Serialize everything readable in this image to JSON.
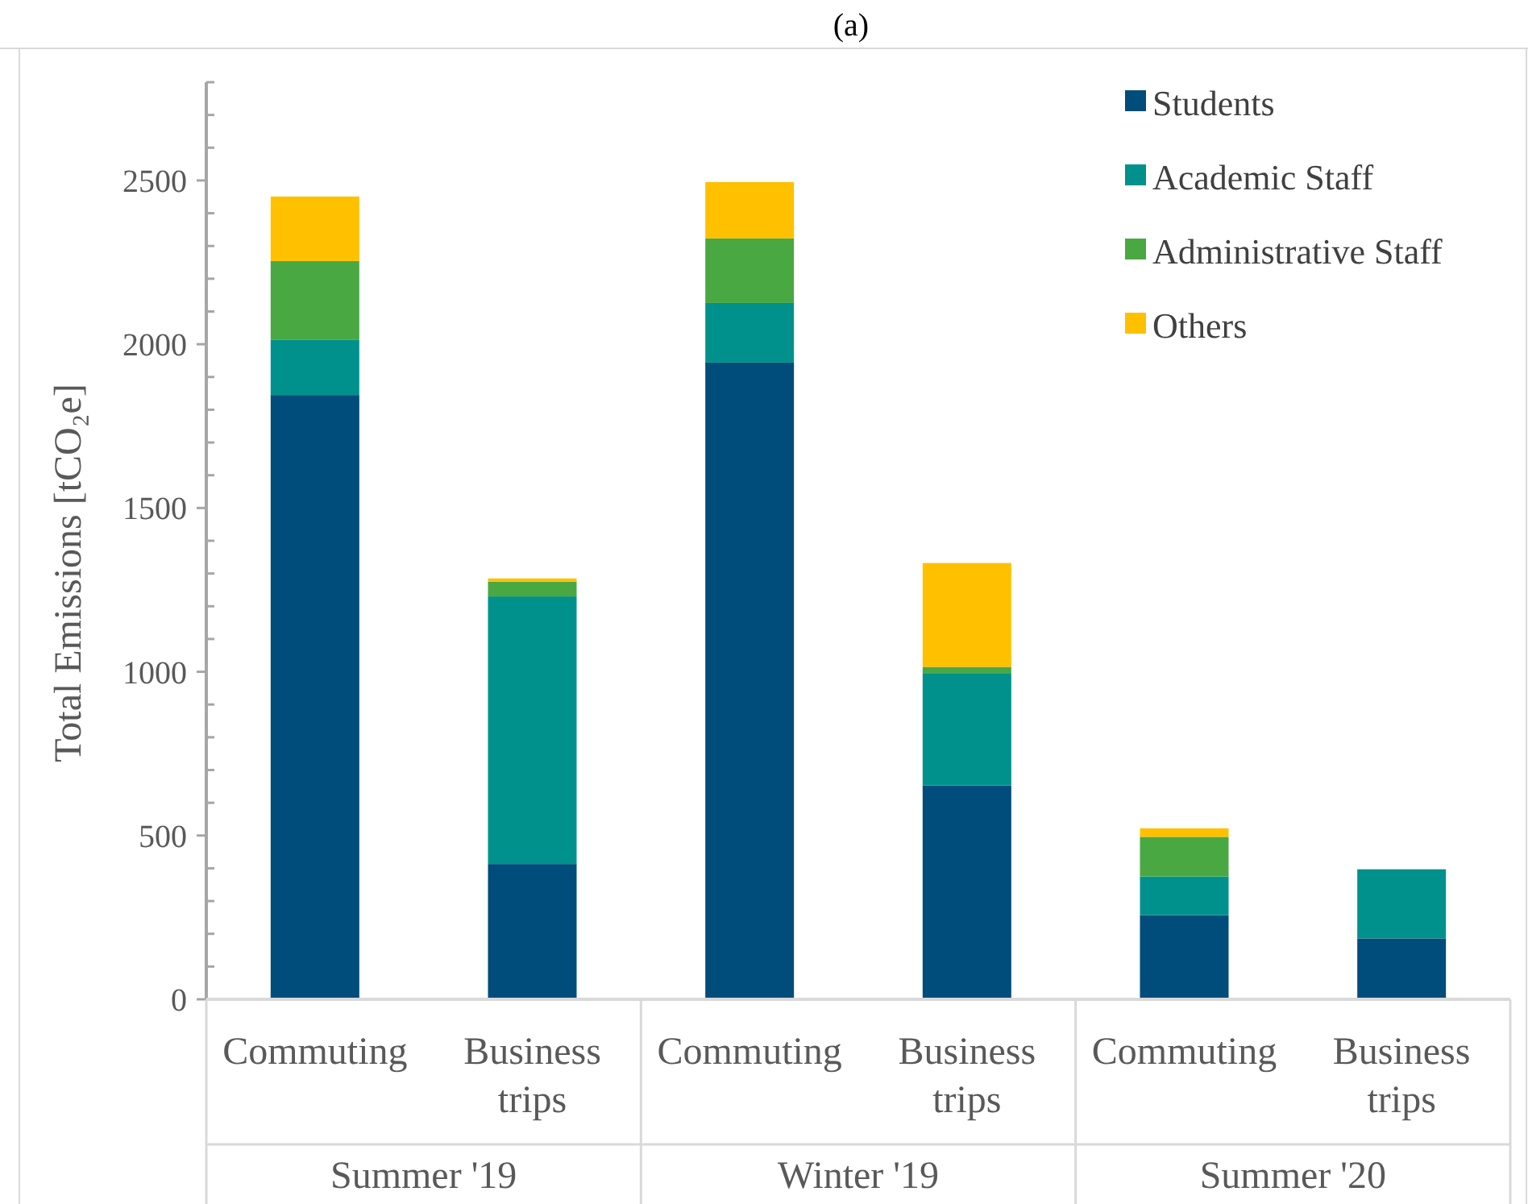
{
  "chart_data": {
    "type": "bar",
    "title": "(a)",
    "ylabel": "Total Emissions [tCO₂e]",
    "stacked": true,
    "legend": "top right",
    "grid": false,
    "categories": [
      "Commuting",
      "Business trips",
      "Commuting",
      "Business trips",
      "Commuting",
      "Business trips"
    ],
    "annotations": [
      "Summer '19",
      "Winter '19",
      "Summer '20"
    ],
    "ylim": [
      0,
      2800
    ],
    "yticks": [
      0,
      {
        "value": 100,
        "label": null
      },
      {
        "value": 200,
        "label": null
      },
      {
        "value": 300,
        "label": null
      },
      {
        "value": 400,
        "label": null
      },
      500,
      {
        "value": 600,
        "label": null
      },
      {
        "value": 700,
        "label": null
      },
      {
        "value": 800,
        "label": null
      },
      {
        "value": 900,
        "label": null
      },
      1000,
      {
        "value": 1100,
        "label": null
      },
      {
        "value": 1200,
        "label": null
      },
      {
        "value": 1300,
        "label": null
      },
      {
        "value": 1400,
        "label": null
      },
      1500,
      {
        "value": 1600,
        "label": null
      },
      {
        "value": 1700,
        "label": null
      },
      {
        "value": 1800,
        "label": null
      },
      {
        "value": 1900,
        "label": null
      },
      2000,
      {
        "value": 2100,
        "label": null
      },
      {
        "value": 2200,
        "label": null
      },
      {
        "value": 2300,
        "label": null
      },
      {
        "value": 2400,
        "label": null
      },
      2500,
      {
        "value": 2600,
        "label": null
      },
      {
        "value": 2700,
        "label": null
      },
      {
        "value": 2800,
        "label": null
      }
    ],
    "series": [
      {
        "name": "Students",
        "color": "#004c7a",
        "values": [
          1845,
          413,
          1944,
          653,
          257,
          186
        ]
      },
      {
        "name": "Academic Staff",
        "color": "#00918c",
        "values": [
          168,
          817,
          182,
          343,
          118,
          211
        ]
      },
      {
        "name": "Administrative Staff",
        "color": "#4aa843",
        "values": [
          241,
          45,
          197,
          19,
          121,
          0
        ]
      },
      {
        "name": "Others",
        "color": "#ffc000",
        "values": [
          197,
          10,
          172,
          317,
          26,
          0
        ]
      }
    ]
  }
}
